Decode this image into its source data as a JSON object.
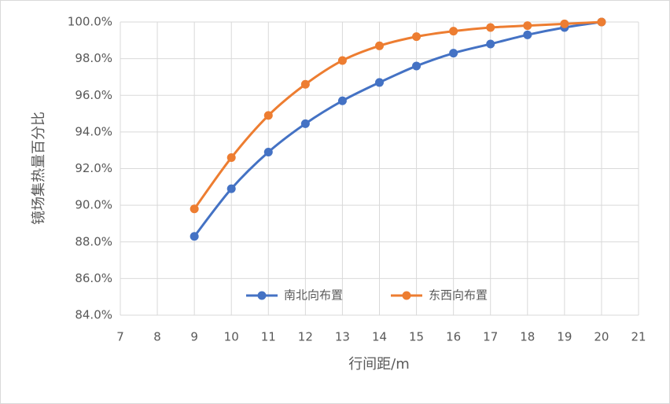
{
  "chart_data": {
    "type": "line",
    "x_label": "行间距/m",
    "y_label": "镜场集热量百分比",
    "x": [
      9,
      10,
      11,
      12,
      13,
      14,
      15,
      16,
      17,
      18,
      19,
      20
    ],
    "series": [
      {
        "name": "南北向布置",
        "color": "#4472c4",
        "values": [
          88.3,
          90.9,
          92.9,
          94.45,
          95.7,
          96.7,
          97.6,
          98.3,
          98.8,
          99.3,
          99.7,
          100
        ]
      },
      {
        "name": "东西向布置",
        "color": "#ed7d31",
        "values": [
          89.8,
          92.6,
          94.9,
          96.6,
          97.9,
          98.7,
          99.2,
          99.5,
          99.7,
          99.8,
          99.9,
          100
        ]
      }
    ],
    "xlim": [
      7,
      21
    ],
    "xticks": [
      7,
      8,
      9,
      10,
      11,
      12,
      13,
      14,
      15,
      16,
      17,
      18,
      19,
      20,
      21
    ],
    "ylim": [
      84,
      100
    ],
    "yticks": [
      {
        "value": 84,
        "label": "84.0%"
      },
      {
        "value": 86,
        "label": "86.0%"
      },
      {
        "value": 88,
        "label": "88.0%"
      },
      {
        "value": 90,
        "label": "90.0%"
      },
      {
        "value": 92,
        "label": "92.0%"
      },
      {
        "value": 94,
        "label": "94.0%"
      },
      {
        "value": 96,
        "label": "96.0%"
      },
      {
        "value": 98,
        "label": "98.0%"
      },
      {
        "value": 100,
        "label": "100.0%"
      }
    ],
    "grid": true,
    "smooth": true,
    "legend": "bottom"
  }
}
